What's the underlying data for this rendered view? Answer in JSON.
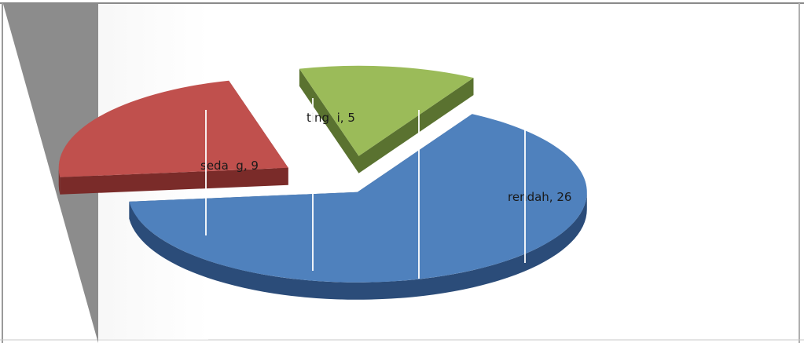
{
  "chart_data": {
    "type": "pie",
    "variant": "3d-exploded",
    "legend": "none",
    "slices": [
      {
        "label": "rendah",
        "value": 26,
        "display": "rendah, 26",
        "color": "#4f81bd",
        "side_color": "#2b4c79"
      },
      {
        "label": "sedang",
        "value": 9,
        "display": "seda  g, 9",
        "color": "#c0504d",
        "side_color": "#7a2b29"
      },
      {
        "label": "tinggi",
        "value": 5,
        "display": "ting  i, 5",
        "color": "#9bbb59",
        "side_color": "#5a7230"
      }
    ]
  }
}
